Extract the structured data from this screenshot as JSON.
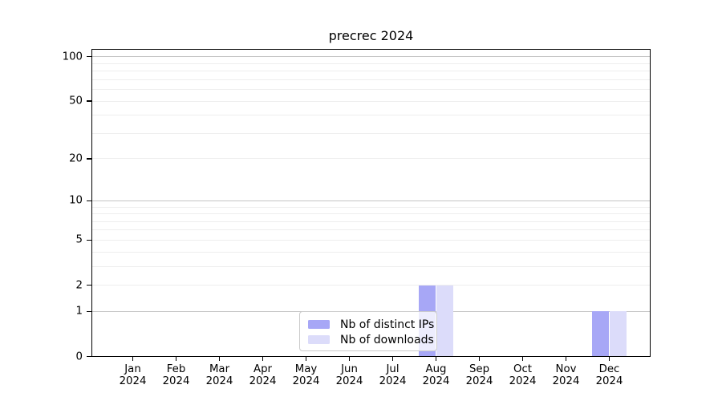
{
  "chart_data": {
    "type": "bar",
    "title": "precrec 2024",
    "categories": [
      {
        "month": "Jan",
        "year": "2024"
      },
      {
        "month": "Feb",
        "year": "2024"
      },
      {
        "month": "Mar",
        "year": "2024"
      },
      {
        "month": "Apr",
        "year": "2024"
      },
      {
        "month": "May",
        "year": "2024"
      },
      {
        "month": "Jun",
        "year": "2024"
      },
      {
        "month": "Jul",
        "year": "2024"
      },
      {
        "month": "Aug",
        "year": "2024"
      },
      {
        "month": "Sep",
        "year": "2024"
      },
      {
        "month": "Oct",
        "year": "2024"
      },
      {
        "month": "Nov",
        "year": "2024"
      },
      {
        "month": "Dec",
        "year": "2024"
      }
    ],
    "series": [
      {
        "name": "Nb of distinct IPs",
        "color": "#a7a7f6",
        "values": [
          0,
          0,
          0,
          0,
          0,
          0,
          0,
          2,
          0,
          0,
          0,
          1
        ]
      },
      {
        "name": "Nb of downloads",
        "color": "#dcdcfa",
        "values": [
          0,
          0,
          0,
          0,
          0,
          0,
          0,
          2,
          0,
          0,
          0,
          1
        ]
      }
    ],
    "yscale": "log10(1+x)",
    "ylim": [
      0,
      113
    ],
    "y_ticks": [
      0,
      1,
      2,
      5,
      10,
      20,
      50,
      100
    ],
    "y_major_gridlines": [
      1,
      10,
      100
    ],
    "y_minor_gridlines": [
      2,
      3,
      4,
      5,
      6,
      7,
      8,
      9,
      20,
      30,
      40,
      50,
      60,
      70,
      80,
      90
    ],
    "grid": "horizontal",
    "legend": {
      "position": "bottom-center-inside",
      "entries": [
        "Nb of distinct IPs",
        "Nb of downloads"
      ]
    },
    "colors": {
      "bar_distinct_ips": "#a7a7f6",
      "bar_downloads": "#dcdcfa",
      "gridline_major": "#c4c4c4",
      "gridline_minor": "#eeeeee",
      "axis": "#000000",
      "text": "#000000",
      "legend_border": "#cbcbcb",
      "background": "#ffffff"
    }
  }
}
